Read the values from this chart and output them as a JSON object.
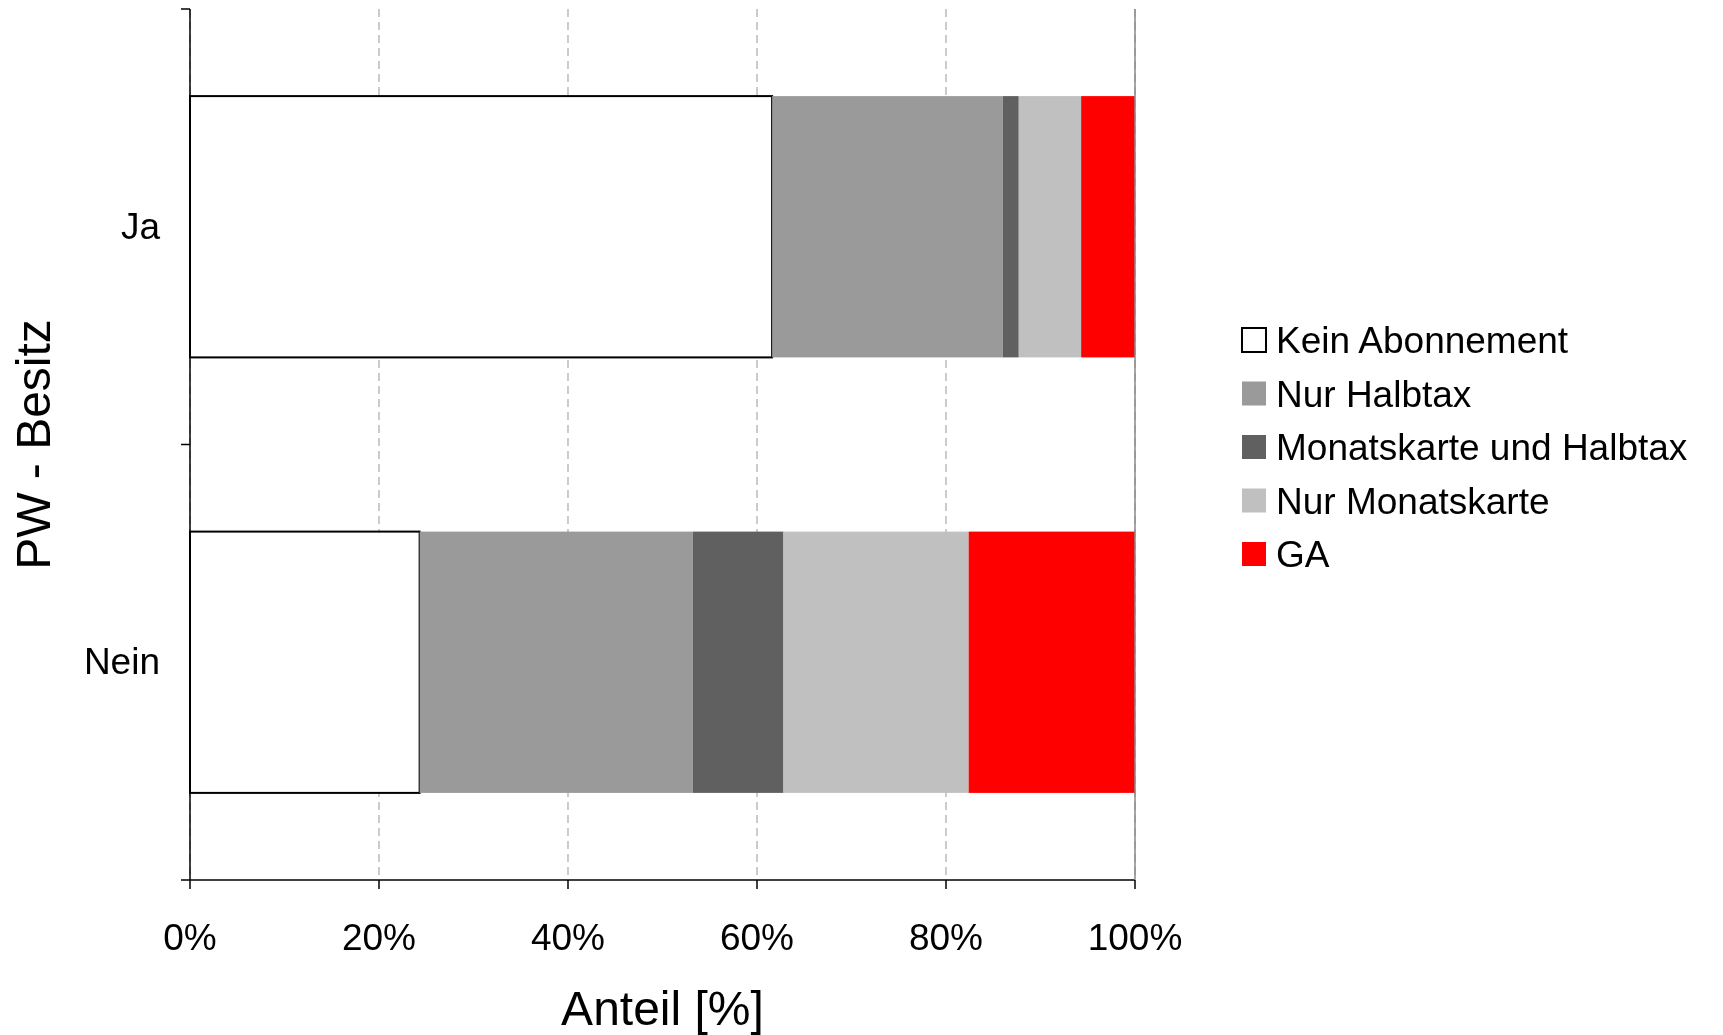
{
  "chart_data": {
    "type": "bar",
    "orientation": "horizontal",
    "stacked": true,
    "categories": [
      "Ja",
      "Nein"
    ],
    "series": [
      {
        "name": "Kein Abonnement",
        "color": "#ffffff",
        "values": [
          61.6,
          24.3
        ]
      },
      {
        "name": "Nur Halbtax",
        "color": "#9a9a9a",
        "values": [
          24.4,
          28.9
        ]
      },
      {
        "name": "Monatskarte und Halbtax",
        "color": "#606060",
        "values": [
          1.7,
          9.6
        ]
      },
      {
        "name": "Nur Monatskarte",
        "color": "#c0c0c0",
        "values": [
          6.6,
          19.6
        ]
      },
      {
        "name": "GA",
        "color": "#ff0000",
        "values": [
          5.7,
          17.6
        ]
      }
    ],
    "xlim": [
      0,
      100
    ],
    "xticks": [
      {
        "value": 0,
        "label": "0%"
      },
      {
        "value": 20,
        "label": "20%"
      },
      {
        "value": 40,
        "label": "40%"
      },
      {
        "value": 60,
        "label": "60%"
      },
      {
        "value": 80,
        "label": "80%"
      },
      {
        "value": 100,
        "label": "100%"
      }
    ],
    "xlabel": "Anteil [%]",
    "ylabel": "PW - Besitz",
    "grid": "x",
    "legend": "right"
  }
}
